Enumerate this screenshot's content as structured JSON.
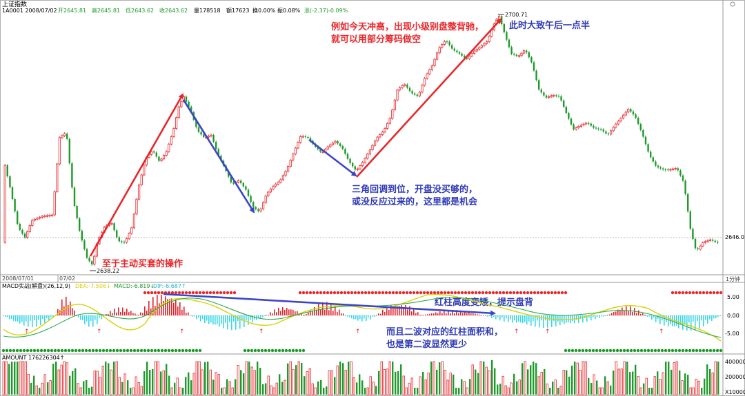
{
  "header": {
    "index_name": "上证指数",
    "code_date": "1A0001 2008/07/02",
    "open": "开2645.81",
    "high": "高2645.81",
    "low": "低2643.62",
    "close": "收2643.62",
    "volume": "量178518",
    "amount": "额17623",
    "turnover": "换0.00%",
    "amplitude": "振0.08%",
    "change": "涨(-2.37)-0.09%"
  },
  "price_chart": {
    "high_label": "2700.71",
    "low_label": "2638.22",
    "last_label": "2646.0",
    "dates": [
      "2008/07/01",
      "07/02"
    ],
    "period": "1分钟"
  },
  "annotations": {
    "a1_line1": "例如今天冲高，出现小级别盘整背驰，",
    "a1_line2": "就可以用部分筹码做空",
    "a2": "此时大致午后一点半",
    "a3_line1": "三角回调到位，开盘没买够的，",
    "a3_line2": "或没反应过来的，这里都是机会",
    "a4": "至于主动买套的操作",
    "a5": "红柱高度变矮，提示盘背",
    "a6_line1": "而且二波对应的红柱面积和，",
    "a6_line2": "也是第二波显然更少"
  },
  "macd_panel": {
    "title": "MACD实战(解盘)(26,12,9)",
    "dea": "DEA:-7.506↓",
    "macd": "MACD:-6.819↓",
    "dif": "DIF:-6.687↑",
    "y_labels": [
      "5.00",
      "0.00",
      "-5.00"
    ]
  },
  "amount_panel": {
    "title": "AMOUNT 176226304↑",
    "y_labels": [
      "400000",
      "200000",
      "X10000"
    ]
  },
  "colors": {
    "up": "#e8262a",
    "down": "#1d9a2a",
    "arrow_red": "#e8262a",
    "arrow_blue": "#3b45c8",
    "text_red": "#e8262a",
    "text_blue": "#2f3ab4",
    "macd_neg": "#3ad6e8",
    "macd_pos": "#e0222a"
  }
}
